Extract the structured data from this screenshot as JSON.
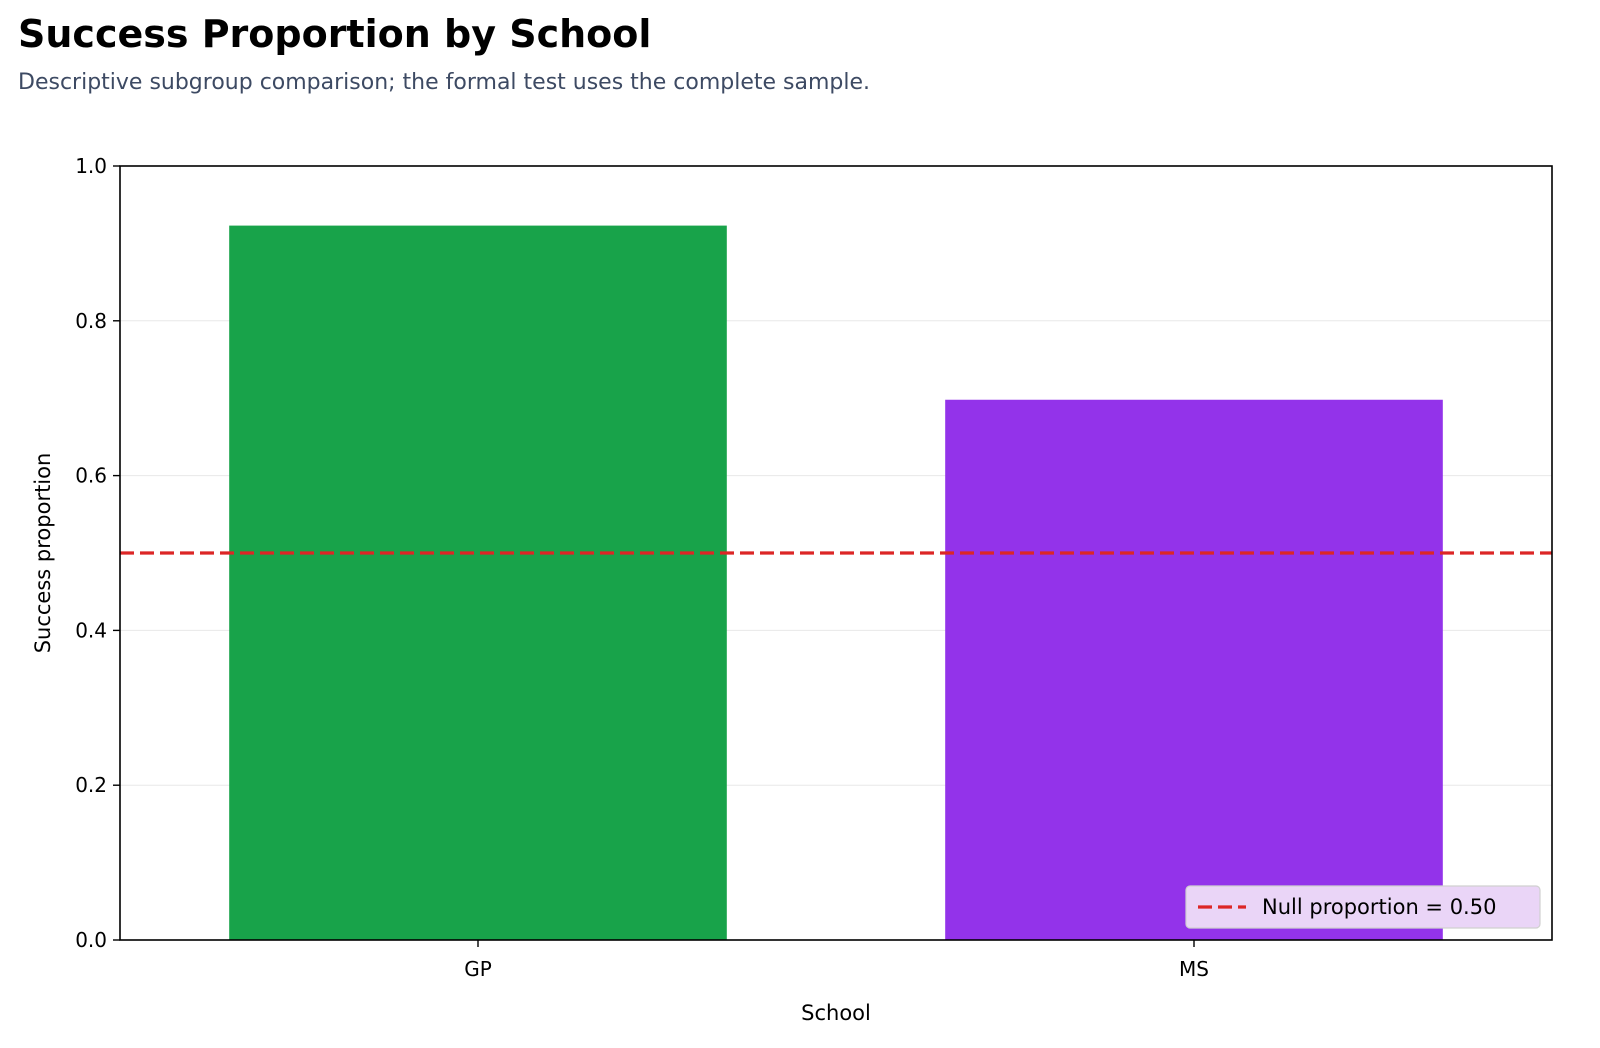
{
  "chart_data": {
    "type": "bar",
    "title": "Success Proportion by School",
    "subtitle": "Descriptive subgroup comparison; the formal test uses the complete sample.",
    "xlabel": "School",
    "ylabel": "Success proportion",
    "categories": [
      "GP",
      "MS"
    ],
    "values": [
      0.923,
      0.698
    ],
    "colors": [
      "#18a34a",
      "#9333ea"
    ],
    "ylim": [
      0,
      1.0
    ],
    "yticks": [
      0.0,
      0.2,
      0.4,
      0.6,
      0.8,
      1.0
    ],
    "ytick_labels": [
      "0.0",
      "0.2",
      "0.4",
      "0.6",
      "0.8",
      "1.0"
    ],
    "grid": "y",
    "reference_line": {
      "value": 0.5,
      "label": "Null proportion = 0.50",
      "color": "#dc2626",
      "style": "dashed"
    },
    "legend": {
      "placement": "bottom-right",
      "background": "#ead5f7"
    }
  }
}
